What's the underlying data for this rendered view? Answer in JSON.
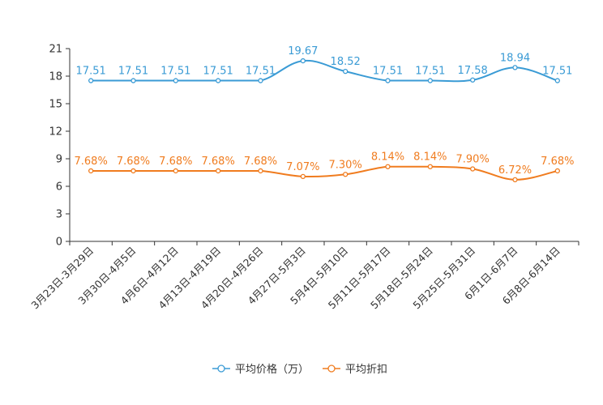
{
  "chart_data": {
    "type": "line",
    "categories": [
      "3月23日-3月29日",
      "3月30日-4月5日",
      "4月6日-4月12日",
      "4月13日-4月19日",
      "4月20日-4月26日",
      "4月27日-5月3日",
      "5月4日-5月10日",
      "5月11日-5月17日",
      "5月18日-5月24日",
      "5月25日-5月31日",
      "6月1日-6月7日",
      "6月8日-6月14日"
    ],
    "series": [
      {
        "name": "平均价格（万）",
        "color": "#3a9bd5",
        "values": [
          17.51,
          17.51,
          17.51,
          17.51,
          17.51,
          19.67,
          18.52,
          17.51,
          17.51,
          17.58,
          18.94,
          17.51
        ],
        "labels": [
          "17.51",
          "17.51",
          "17.51",
          "17.51",
          "17.51",
          "19.67",
          "18.52",
          "17.51",
          "17.51",
          "17.58",
          "18.94",
          "17.51"
        ]
      },
      {
        "name": "平均折扣",
        "color": "#f07c1f",
        "values": [
          7.68,
          7.68,
          7.68,
          7.68,
          7.68,
          7.07,
          7.3,
          8.14,
          8.14,
          7.9,
          6.72,
          7.68
        ],
        "labels": [
          "7.68%",
          "7.68%",
          "7.68%",
          "7.68%",
          "7.68%",
          "7.07%",
          "7.30%",
          "8.14%",
          "8.14%",
          "7.90%",
          "6.72%",
          "7.68%"
        ]
      }
    ],
    "yticks": [
      "0",
      "3",
      "6",
      "9",
      "12",
      "15",
      "18",
      "21"
    ],
    "ylim": [
      0,
      21
    ],
    "legend_position": "bottom"
  }
}
